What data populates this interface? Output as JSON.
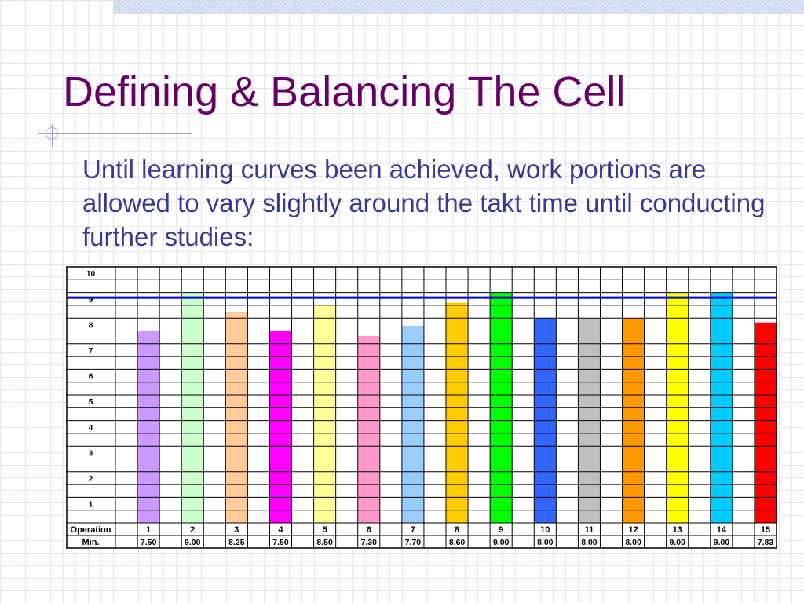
{
  "slide": {
    "title": "Defining & Balancing The Cell",
    "body": "Until learning curves been achieved, work portions are allowed to vary slightly around the takt time until conducting further studies:"
  },
  "colors": {
    "title": "#660066",
    "body": "#3a3a8c",
    "takt_line": "#0000cc",
    "bars": [
      "#cc99ff",
      "#ccffcc",
      "#ffcc99",
      "#ff00ff",
      "#ffff99",
      "#ff99cc",
      "#99ccff",
      "#ffcc00",
      "#00ff00",
      "#3366ff",
      "#c0c0c0",
      "#ff9900",
      "#ffff00",
      "#00ccff",
      "#ff0000"
    ]
  },
  "chart_data": {
    "type": "bar",
    "y_tick_labels": [
      "10",
      "9",
      "8",
      "7",
      "6",
      "5",
      "4",
      "3",
      "2",
      "1"
    ],
    "ylim": [
      0,
      10
    ],
    "row_labels": [
      "Operation",
      "Min."
    ],
    "categories": [
      "1",
      "2",
      "3",
      "4",
      "5",
      "6",
      "7",
      "8",
      "9",
      "10",
      "11",
      "12",
      "13",
      "14",
      "15"
    ],
    "value_labels": [
      "7.50",
      "9.00",
      "8.25",
      "7.50",
      "8.50",
      "7.30",
      "7.70",
      "8.60",
      "9.00",
      "8.00",
      "8.00",
      "8.00",
      "9.00",
      "9.00",
      "7.83"
    ],
    "values": [
      7.5,
      9.0,
      8.25,
      7.5,
      8.5,
      7.3,
      7.7,
      8.6,
      9.0,
      8.0,
      8.0,
      8.0,
      9.0,
      9.0,
      7.83
    ],
    "takt_time_line": 8.8,
    "grid": true
  }
}
